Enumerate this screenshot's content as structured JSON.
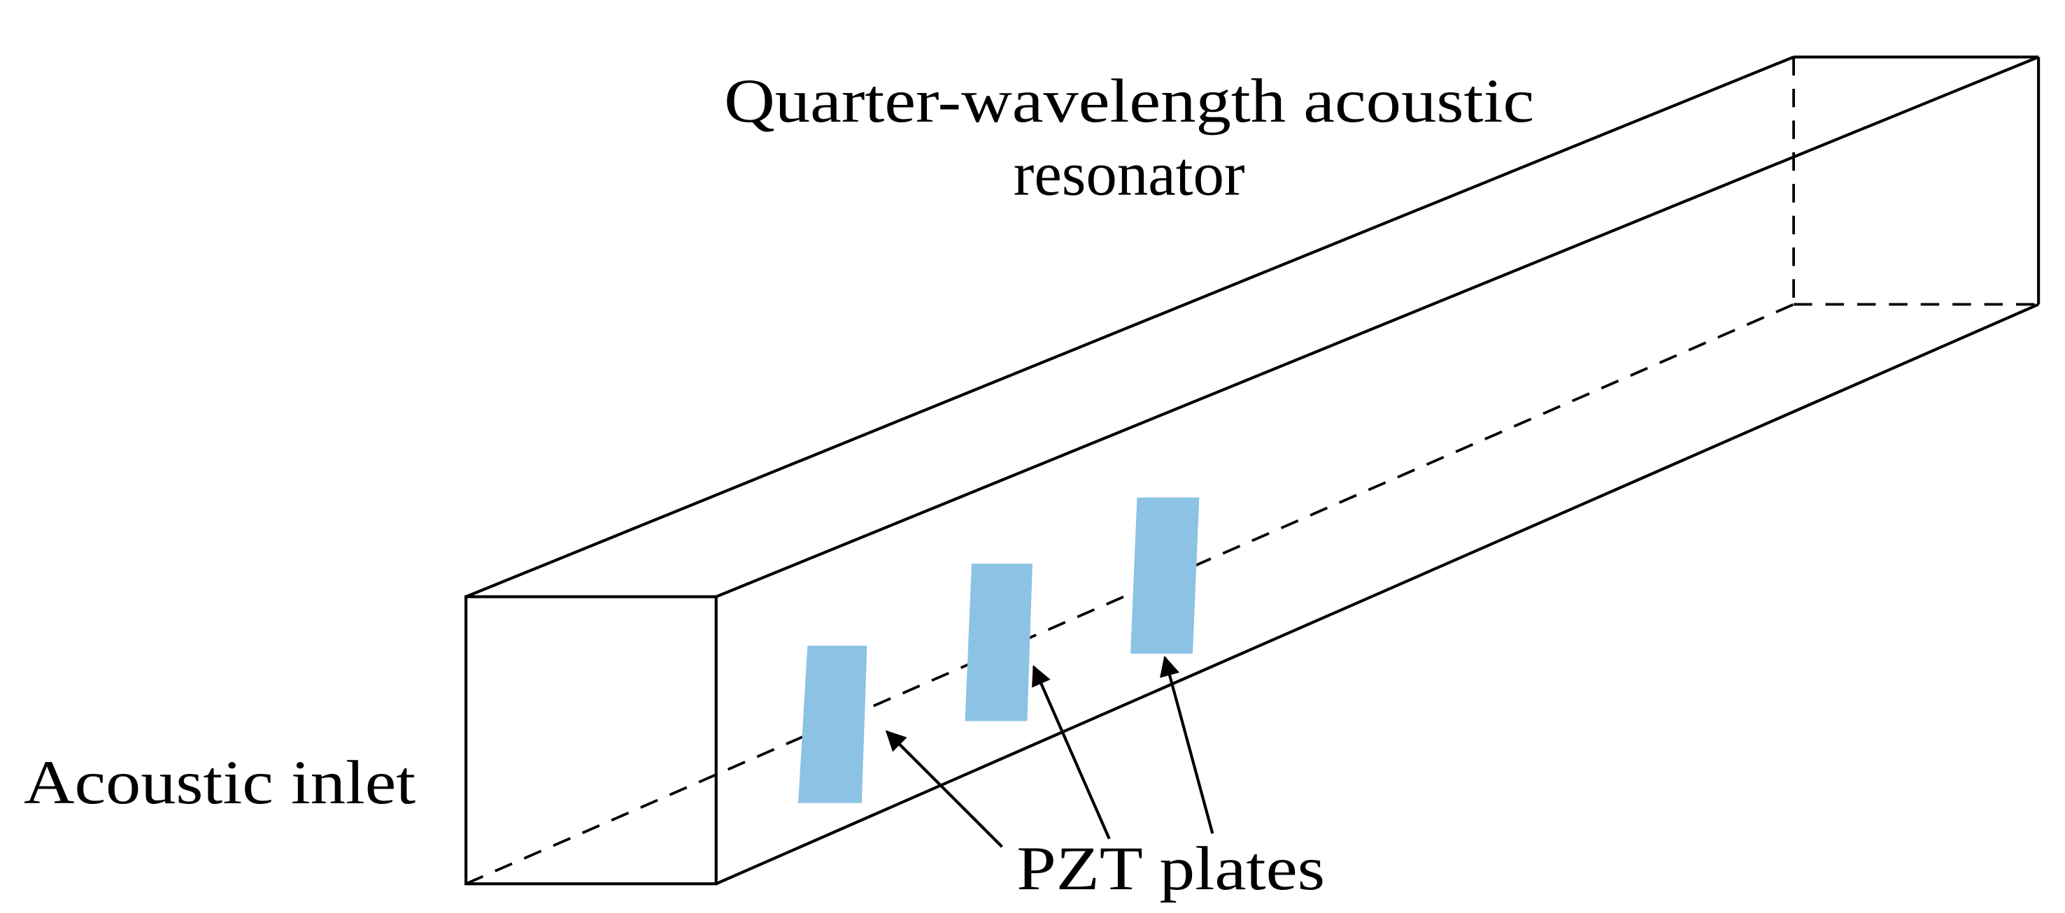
{
  "labels": {
    "resonator_line1": "Quarter-wavelength acoustic",
    "resonator_line2": "resonator",
    "inlet": "Acoustic inlet",
    "plates": "PZT plates"
  },
  "colors": {
    "plate_fill": "#8cc3e5",
    "line": "#000000"
  },
  "plate_count": 3
}
